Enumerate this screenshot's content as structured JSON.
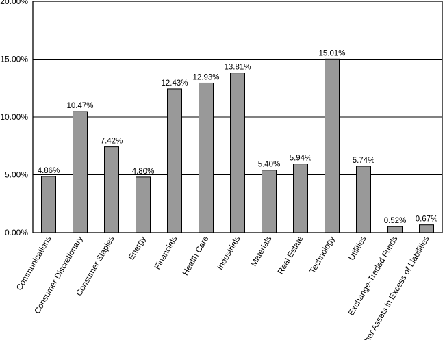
{
  "chart_data": {
    "type": "bar",
    "title": "",
    "xlabel": "",
    "ylabel": "",
    "ylim": [
      0,
      20
    ],
    "yticks": [
      0,
      5,
      10,
      15,
      20
    ],
    "ytick_labels": [
      "0.00%",
      "5.00%",
      "10.00%",
      "15.00%",
      "20.00%"
    ],
    "grid": true,
    "categories": [
      "Communications",
      "Consumer Discretionary",
      "Consumer Staples",
      "Energy",
      "Financials",
      "Health Care",
      "Industrials",
      "Materials",
      "Real Estate",
      "Technology",
      "Utilities",
      "Exchange-Traded Funds",
      "Other Assets in Excess of Liabilities"
    ],
    "values": [
      4.86,
      10.47,
      7.42,
      4.8,
      12.43,
      12.93,
      13.81,
      5.4,
      5.94,
      15.01,
      5.74,
      0.52,
      0.67
    ],
    "data_labels": [
      "4.86%",
      "10.47%",
      "7.42%",
      "4.80%",
      "12.43%",
      "12.93%",
      "13.81%",
      "5.40%",
      "5.94%",
      "15.01%",
      "5.74%",
      "0.52%",
      "0.67%"
    ],
    "bar_color": "#999999",
    "bar_edge_color": "#000000"
  }
}
